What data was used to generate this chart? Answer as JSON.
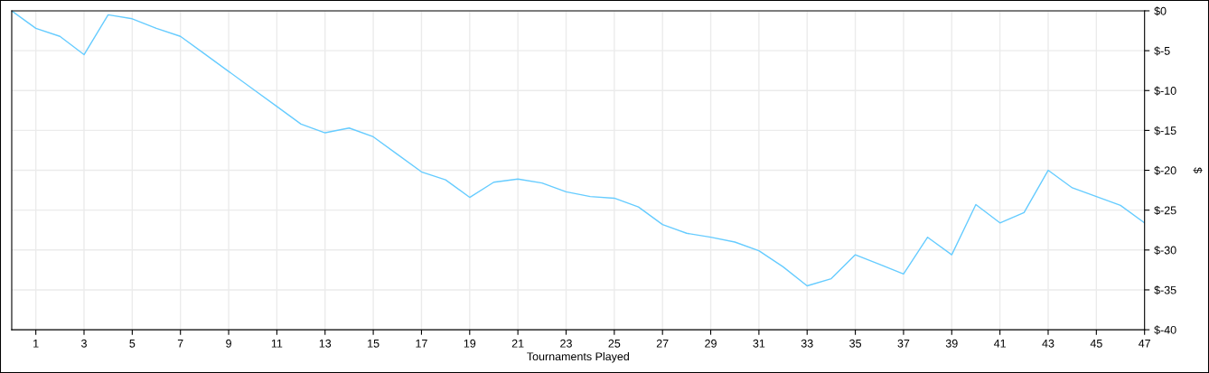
{
  "chart_data": {
    "type": "line",
    "xlabel": "Tournaments Played",
    "ylabel": "$",
    "x": [
      0,
      1,
      2,
      3,
      4,
      5,
      6,
      7,
      8,
      9,
      10,
      11,
      12,
      13,
      14,
      15,
      16,
      17,
      18,
      19,
      20,
      21,
      22,
      23,
      24,
      25,
      26,
      27,
      28,
      29,
      30,
      31,
      32,
      33,
      34,
      35,
      36,
      37,
      38,
      39,
      40,
      41,
      42,
      43,
      44,
      45,
      46,
      47
    ],
    "series": [
      {
        "color": "#66ccff",
        "values": [
          0,
          -2.2,
          -3.2,
          -5.5,
          -0.5,
          -1.0,
          -2.2,
          -3.2,
          -5.4,
          -7.6,
          -9.8,
          -12.0,
          -14.2,
          -15.3,
          -14.7,
          -15.8,
          -18.0,
          -20.2,
          -21.2,
          -23.4,
          -21.5,
          -21.1,
          -21.6,
          -22.7,
          -23.3,
          -23.5,
          -24.6,
          -26.8,
          -27.9,
          -28.4,
          -29.0,
          -30.1,
          -32.1,
          -34.5,
          -33.6,
          -30.6,
          -31.8,
          -33.0,
          -28.4,
          -30.6,
          -24.3,
          -26.6,
          -25.3,
          -20.0,
          -22.2,
          -23.3,
          -24.4,
          -26.6
        ]
      }
    ],
    "xlim": [
      0,
      47
    ],
    "xticks": [
      1,
      3,
      5,
      7,
      9,
      11,
      13,
      15,
      17,
      19,
      21,
      23,
      25,
      27,
      29,
      31,
      33,
      35,
      37,
      39,
      41,
      43,
      45,
      47
    ],
    "ylim": [
      -40,
      0
    ],
    "yticks": [
      {
        "value": 0,
        "label": "$0"
      },
      {
        "value": -5,
        "label": "$-5"
      },
      {
        "value": -10,
        "label": "$-10"
      },
      {
        "value": -15,
        "label": "$-15"
      },
      {
        "value": -20,
        "label": "$-20"
      },
      {
        "value": -25,
        "label": "$-25"
      },
      {
        "value": -30,
        "label": "$-30"
      },
      {
        "value": -35,
        "label": "$-35"
      },
      {
        "value": -40,
        "label": "$-40"
      }
    ],
    "grid": true,
    "marker": "none",
    "line_style": "solid"
  }
}
